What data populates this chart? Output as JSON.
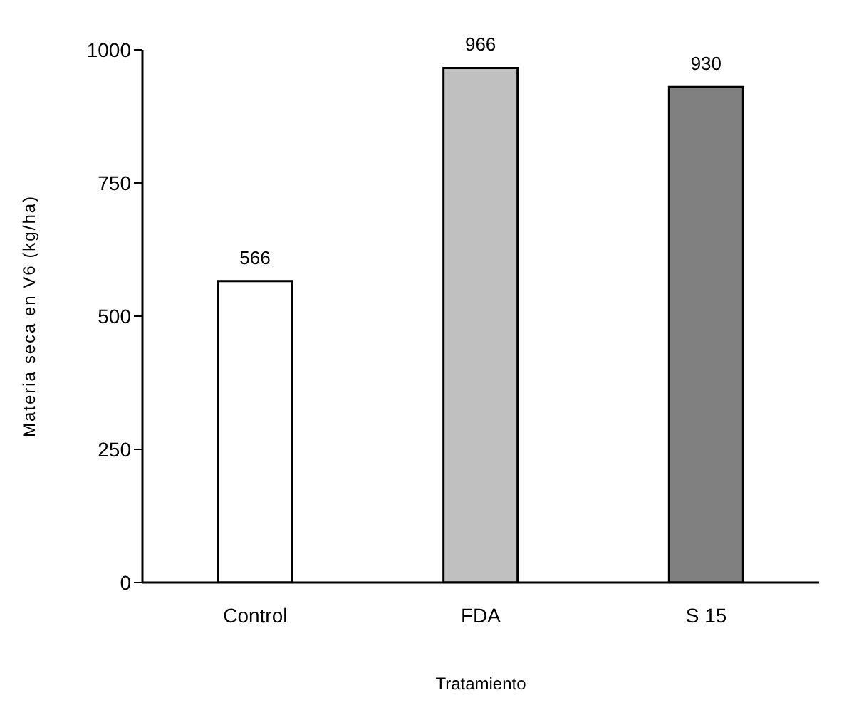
{
  "chart_data": {
    "type": "bar",
    "xlabel": "Tratamiento",
    "ylabel": "Materia seca en V6 (kg/ha)",
    "categories": [
      "Control",
      "FDA",
      "S 15"
    ],
    "values": [
      566,
      966,
      930
    ],
    "colors": [
      "#ffffff",
      "#c0c0c0",
      "#808080"
    ],
    "ylim": [
      0,
      1000
    ],
    "yticks": [
      0,
      250,
      500,
      750,
      1000
    ],
    "grid": false,
    "data_labels": true
  }
}
